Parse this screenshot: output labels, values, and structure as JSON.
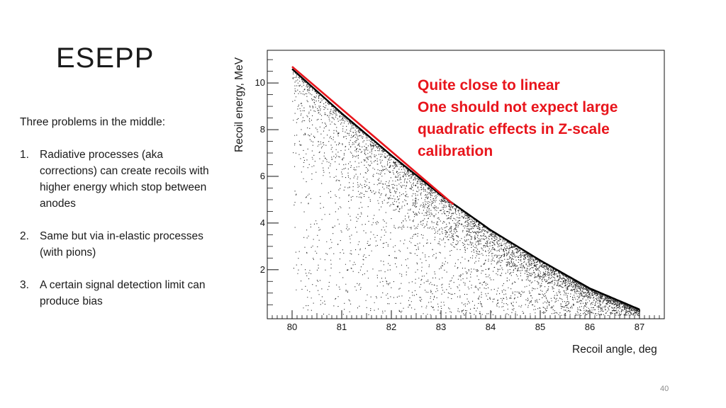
{
  "slide": {
    "title": "ESEPP",
    "intro": "Three problems in the middle:",
    "problems": [
      {
        "num": "1.",
        "text": "Radiative processes (aka corrections) can create recoils with higher energy which stop between anodes"
      },
      {
        "num": "2.",
        "text": "Same but via in-elastic processes (with pions)"
      },
      {
        "num": "3.",
        "text": "A certain signal detection limit can produce bias"
      }
    ],
    "annotation": [
      "Quite close to linear",
      "One should not expect large",
      "quadratic effects in Z-scale",
      "calibration"
    ],
    "page_number": "40"
  },
  "chart_data": {
    "type": "scatter",
    "title": "",
    "xlabel": "Recoil angle, deg",
    "ylabel": "Recoil energy, MeV",
    "xlim": [
      79.5,
      87.5
    ],
    "ylim": [
      -0.1,
      11.4
    ],
    "xticks": [
      80,
      81,
      82,
      83,
      84,
      85,
      86,
      87
    ],
    "yticks": [
      2,
      4,
      6,
      8,
      10
    ],
    "upper_envelope": {
      "x": [
        80,
        81,
        82,
        83,
        84,
        85,
        86,
        87
      ],
      "y": [
        10.6,
        8.7,
        6.9,
        5.2,
        3.7,
        2.4,
        1.2,
        0.3
      ]
    },
    "series": [
      {
        "kind": "line",
        "x": [
          80,
          83.25
        ],
        "y": [
          10.7,
          4.8
        ],
        "color": "#e8151c"
      }
    ],
    "colors": {
      "points": "#000000",
      "annotation": "#e8151c",
      "axis": "#111111"
    }
  }
}
